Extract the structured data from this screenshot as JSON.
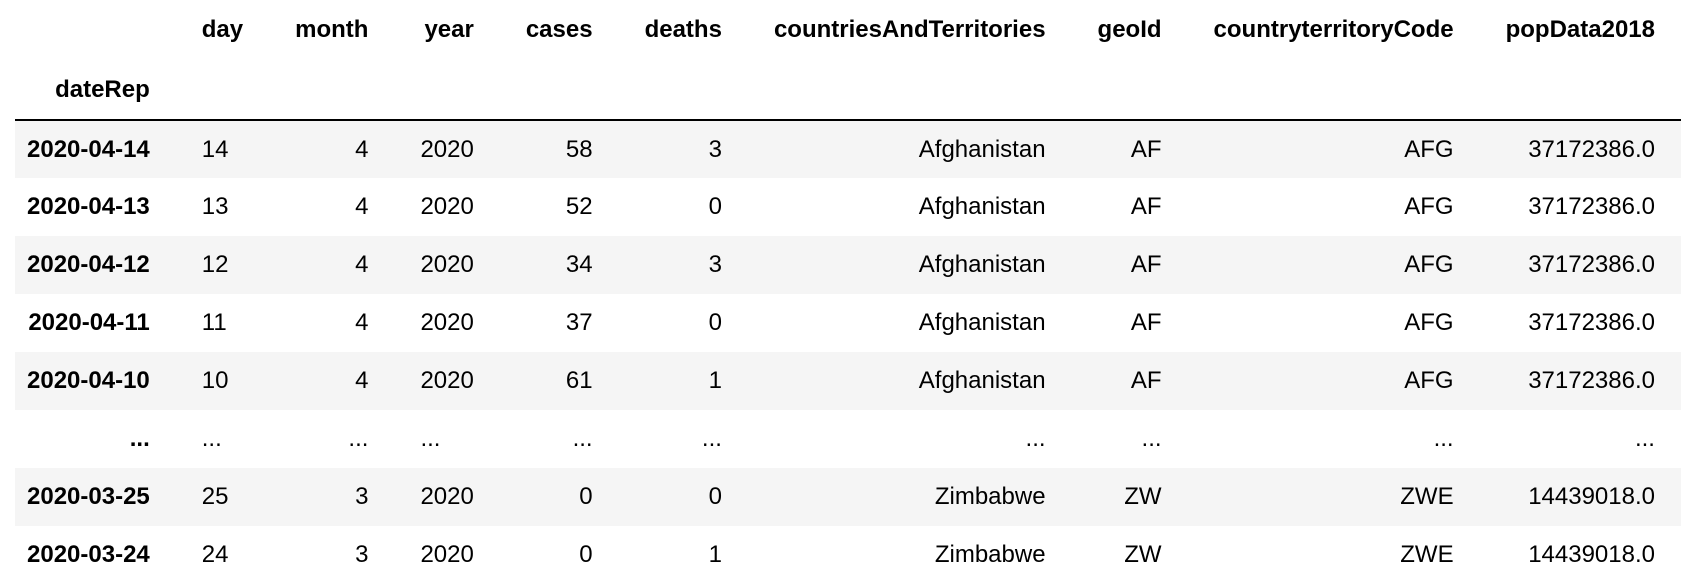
{
  "table": {
    "index_name": "dateRep",
    "columns": [
      "day",
      "month",
      "year",
      "cases",
      "deaths",
      "countriesAndTerritories",
      "geoId",
      "countryterritoryCode",
      "popData2018"
    ],
    "rows": [
      {
        "index": "2020-04-14",
        "values": [
          "14",
          "4",
          "2020",
          "58",
          "3",
          "Afghanistan",
          "AF",
          "AFG",
          "37172386.0"
        ]
      },
      {
        "index": "2020-04-13",
        "values": [
          "13",
          "4",
          "2020",
          "52",
          "0",
          "Afghanistan",
          "AF",
          "AFG",
          "37172386.0"
        ]
      },
      {
        "index": "2020-04-12",
        "values": [
          "12",
          "4",
          "2020",
          "34",
          "3",
          "Afghanistan",
          "AF",
          "AFG",
          "37172386.0"
        ]
      },
      {
        "index": "2020-04-11",
        "values": [
          "11",
          "4",
          "2020",
          "37",
          "0",
          "Afghanistan",
          "AF",
          "AFG",
          "37172386.0"
        ]
      },
      {
        "index": "2020-04-10",
        "values": [
          "10",
          "4",
          "2020",
          "61",
          "1",
          "Afghanistan",
          "AF",
          "AFG",
          "37172386.0"
        ]
      },
      {
        "index": "...",
        "values": [
          "...",
          "...",
          "...",
          "...",
          "...",
          "...",
          "...",
          "...",
          "..."
        ]
      },
      {
        "index": "2020-03-25",
        "values": [
          "25",
          "3",
          "2020",
          "0",
          "0",
          "Zimbabwe",
          "ZW",
          "ZWE",
          "14439018.0"
        ]
      },
      {
        "index": "2020-03-24",
        "values": [
          "24",
          "3",
          "2020",
          "0",
          "1",
          "Zimbabwe",
          "ZW",
          "ZWE",
          "14439018.0"
        ]
      }
    ]
  }
}
